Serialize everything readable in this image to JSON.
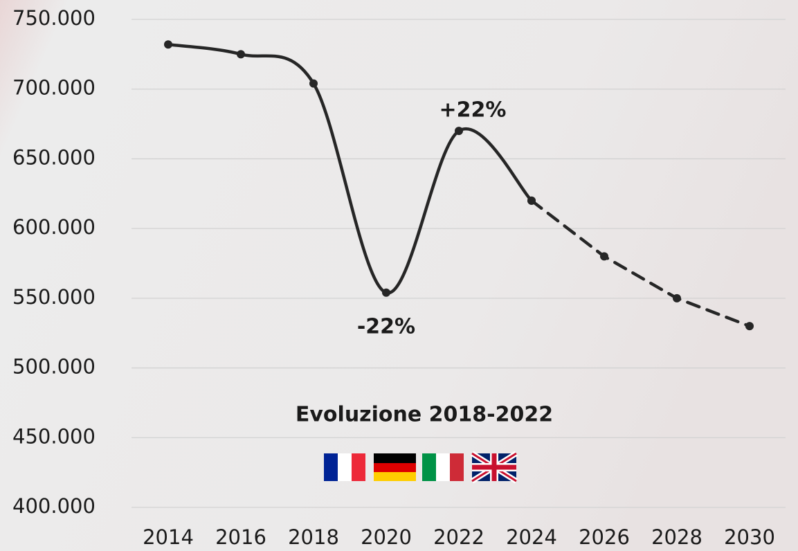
{
  "chart_data": {
    "type": "line",
    "subtitle": "Evoluzione 2018-2022",
    "annotations": [
      "+22%",
      "-22%"
    ],
    "categories": [
      "2014",
      "2016",
      "2018",
      "2020",
      "2022",
      "2024",
      "2026",
      "2028",
      "2030"
    ],
    "series": [
      {
        "color": "#262626",
        "dashed": false,
        "smooth": true,
        "values": [
          732000,
          725000,
          704000,
          554000,
          670000,
          620000,
          null,
          null,
          null
        ]
      },
      {
        "color": "#262626",
        "dashed": true,
        "smooth": false,
        "values": [
          null,
          null,
          null,
          null,
          null,
          620000,
          580000,
          550000,
          530000
        ]
      }
    ],
    "ylim": [
      400000,
      750000
    ],
    "yticks": [
      {
        "value": 400000,
        "label": "400.000"
      },
      {
        "value": 450000,
        "label": "450.000"
      },
      {
        "value": 500000,
        "label": "500.000"
      },
      {
        "value": 550000,
        "label": "550.000"
      },
      {
        "value": 600000,
        "label": "600.000"
      },
      {
        "value": 650000,
        "label": "650.000"
      },
      {
        "value": 700000,
        "label": "700.000"
      },
      {
        "value": 750000,
        "label": "750.000"
      }
    ],
    "grid": true
  }
}
